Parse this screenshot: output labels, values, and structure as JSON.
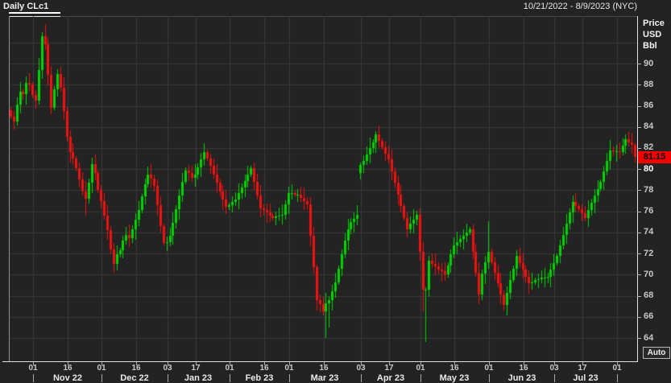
{
  "header": {
    "title": "Daily CLc1",
    "date_range": "10/21/2022 - 8/9/2023 (NYC)"
  },
  "y_axis": {
    "title_lines": [
      "Price",
      "USD",
      "Bbl"
    ],
    "ticks": [
      90,
      88,
      86,
      84,
      82,
      80,
      78,
      76,
      74,
      72,
      70,
      68,
      66,
      64
    ],
    "bold_tick": 80,
    "last_price_label": "81.15",
    "auto_label": "Auto"
  },
  "x_axis": {
    "ticks": [
      {
        "label": "01",
        "i": 7
      },
      {
        "label": "16",
        "i": 18
      },
      {
        "label": "01",
        "i": 29
      },
      {
        "label": "16",
        "i": 40
      },
      {
        "label": "03",
        "i": 50
      },
      {
        "label": "17",
        "i": 59
      },
      {
        "label": "01",
        "i": 70
      },
      {
        "label": "16",
        "i": 81
      },
      {
        "label": "01",
        "i": 89
      },
      {
        "label": "16",
        "i": 100
      },
      {
        "label": "03",
        "i": 112
      },
      {
        "label": "17",
        "i": 121
      },
      {
        "label": "01",
        "i": 131
      },
      {
        "label": "16",
        "i": 142
      },
      {
        "label": "01",
        "i": 153
      },
      {
        "label": "16",
        "i": 164
      },
      {
        "label": "03",
        "i": 174
      },
      {
        "label": "17",
        "i": 183
      },
      {
        "label": "01",
        "i": 194
      }
    ],
    "months": [
      {
        "label": "Nov 22",
        "s": 7,
        "e": 29
      },
      {
        "label": "Dec 22",
        "s": 29,
        "e": 50
      },
      {
        "label": "Jan 23",
        "s": 50,
        "e": 70
      },
      {
        "label": "Feb 23",
        "s": 70,
        "e": 89
      },
      {
        "label": "Mar 23",
        "s": 89,
        "e": 112
      },
      {
        "label": "Apr 23",
        "s": 112,
        "e": 131
      },
      {
        "label": "May 23",
        "s": 131,
        "e": 153
      },
      {
        "label": "Jun 23",
        "s": 153,
        "e": 174
      },
      {
        "label": "Jul 23",
        "s": 174,
        "e": 194
      }
    ]
  },
  "chart_data": {
    "type": "candlestick",
    "symbol": "CLc1",
    "interval": "Daily",
    "title": "Daily CLc1",
    "x_range": [
      "10/21/2022",
      "8/9/2023"
    ],
    "ylabel": "Price USD Bbl",
    "y_domain": [
      61.8,
      94.5
    ],
    "grid_prices": [
      64,
      66,
      68,
      70,
      72,
      74,
      76,
      78,
      80,
      82,
      84,
      86,
      88,
      90,
      92
    ],
    "last_price": 81.15,
    "first_open": 85.6,
    "closes": [
      85.0,
      84.5,
      86.1,
      87.3,
      87.1,
      88.2,
      88.0,
      87.0,
      86.5,
      89.4,
      92.6,
      91.8,
      88.9,
      85.8,
      87.6,
      89.0,
      87.7,
      85.5,
      83.1,
      81.6,
      81.0,
      80.1,
      79.0,
      77.9,
      77.2,
      78.7,
      80.5,
      79.6,
      78.0,
      77.0,
      75.6,
      74.2,
      72.4,
      71.0,
      71.9,
      72.3,
      73.2,
      73.8,
      73.5,
      74.3,
      75.2,
      76.1,
      77.4,
      78.6,
      79.5,
      79.1,
      78.4,
      76.6,
      74.6,
      73.0,
      73.1,
      73.7,
      74.9,
      76.2,
      77.5,
      78.8,
      79.9,
      79.6,
      79.2,
      79.5,
      80.2,
      80.9,
      81.6,
      81.0,
      80.3,
      79.5,
      78.7,
      77.9,
      77.1,
      76.4,
      76.6,
      76.9,
      77.1,
      77.7,
      78.3,
      78.9,
      79.5,
      80.1,
      78.8,
      77.5,
      76.3,
      76.1,
      75.9,
      75.6,
      75.4,
      75.5,
      75.6,
      75.7,
      76.7,
      77.7,
      77.7,
      77.6,
      77.6,
      77.3,
      77.0,
      76.7,
      73.7,
      70.7,
      67.6,
      67.2,
      66.5,
      67.3,
      67.6,
      68.4,
      69.3,
      70.6,
      71.9,
      73.2,
      74.3,
      75.0,
      75.3,
      75.7,
      80.4,
      80.8,
      81.4,
      82.0,
      82.5,
      83.3,
      82.7,
      82.1,
      81.5,
      80.9,
      79.8,
      78.7,
      77.6,
      76.5,
      75.4,
      74.3,
      74.8,
      75.2,
      75.7,
      72.2,
      68.6,
      68.6,
      71.3,
      71.0,
      70.8,
      70.5,
      70.3,
      70.0,
      70.9,
      71.9,
      72.8,
      73.1,
      73.4,
      73.7,
      74.0,
      74.3,
      72.2,
      70.2,
      68.1,
      70.1,
      71.2,
      72.2,
      71.2,
      70.2,
      69.2,
      68.1,
      67.1,
      68.3,
      69.5,
      70.6,
      71.8,
      71.1,
      70.5,
      69.8,
      69.2,
      69.3,
      69.5,
      69.6,
      69.7,
      69.7,
      69.8,
      70.5,
      71.1,
      71.8,
      72.8,
      73.8,
      74.8,
      75.9,
      76.9,
      76.5,
      76.2,
      75.8,
      75.4,
      76.1,
      76.8,
      77.5,
      78.1,
      78.8,
      79.8,
      80.8,
      81.8,
      81.7,
      81.7,
      81.6,
      82.2,
      82.8,
      82.5,
      82.3,
      81.15
    ],
    "open_overrides": {
      "112": 79.6
    },
    "wick_overrides": {
      "9": {
        "h": 90.5
      },
      "10": {
        "h": 93.0
      },
      "11": {
        "h": 93.7
      },
      "24": {
        "l": 75.6
      },
      "33": {
        "l": 70.2
      },
      "98": {
        "l": 66.6
      },
      "101": {
        "l": 64.0
      },
      "102": {
        "l": 65.0
      },
      "112": {
        "l": 79.0
      },
      "117": {
        "h": 83.6
      },
      "131": {
        "l": 71.3
      },
      "132": {
        "l": 66.5
      },
      "133": {
        "l": 63.6
      },
      "150": {
        "l": 67.2
      },
      "153": {
        "h": 75.1
      },
      "158": {
        "l": 66.6
      },
      "196": {
        "h": 82.9
      },
      "200": {
        "h": 82.45
      }
    }
  },
  "colors": {
    "bg": "#232323",
    "grid": "#3a3a3a",
    "up": "#00d300",
    "down": "#ef1212",
    "badge_bg": "#f50000",
    "badge_text": "#000000",
    "text": "#c9c9c9",
    "text_bright": "#ffffff"
  }
}
